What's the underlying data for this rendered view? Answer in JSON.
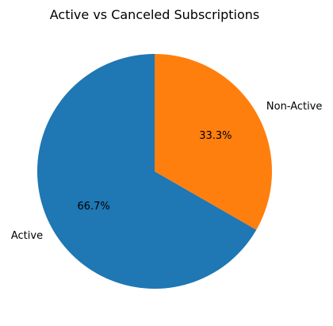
{
  "chart_data": {
    "type": "pie",
    "title": "Active vs Canceled Subscriptions",
    "labels": [
      "Active",
      "Non-Active"
    ],
    "values": [
      66.7,
      33.3
    ],
    "percent_labels": [
      "66.7%",
      "33.3%"
    ],
    "colors": [
      "#1f77b4",
      "#ff7f0e"
    ],
    "start_angle_deg": 90,
    "direction": "counterclockwise",
    "legend": "none"
  }
}
